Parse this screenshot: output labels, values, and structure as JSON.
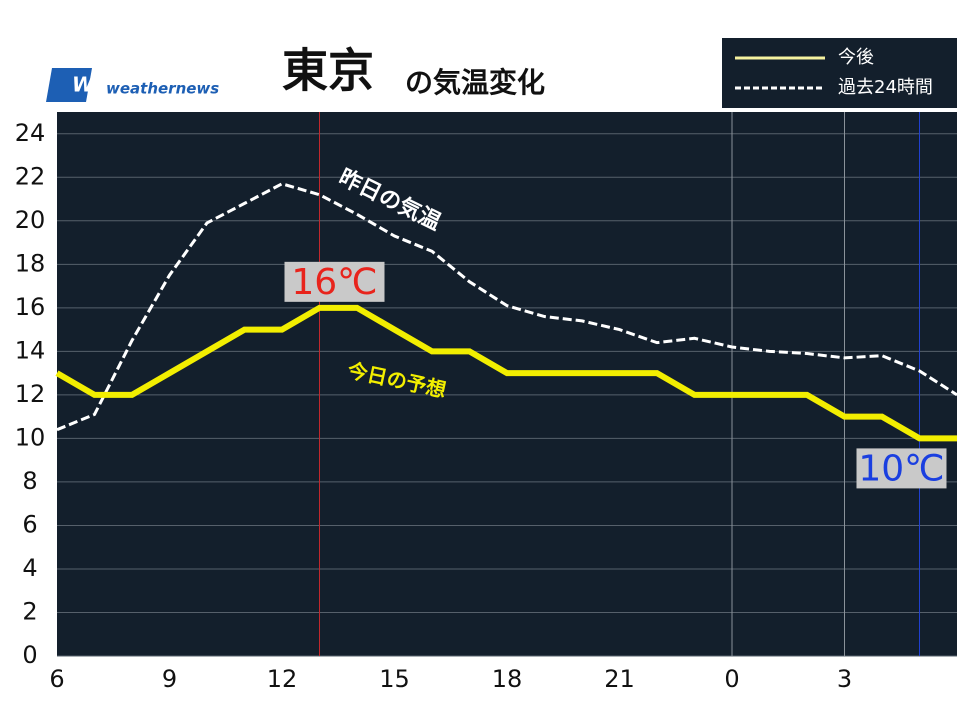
{
  "chart_data": {
    "type": "line",
    "title": "東京",
    "subtitle": "の気温変化",
    "source_mark": "WN",
    "source": "weathernews",
    "x": [
      6,
      7,
      8,
      9,
      10,
      11,
      12,
      13,
      14,
      15,
      16,
      17,
      18,
      19,
      20,
      21,
      22,
      23,
      24,
      25,
      26,
      27,
      28,
      29,
      30
    ],
    "xlim": [
      6,
      30
    ],
    "xticks": [
      6,
      9,
      12,
      15,
      18,
      21,
      {
        "value": 24,
        "label": "0"
      },
      {
        "value": 27,
        "label": "3"
      }
    ],
    "ylim": [
      0,
      25
    ],
    "yticks": [
      0,
      2,
      4,
      6,
      8,
      10,
      12,
      14,
      16,
      18,
      20,
      22,
      24
    ],
    "grid": true,
    "legend": "top-right",
    "series": [
      {
        "name": "今後",
        "annotation": "今日の予想",
        "color": "#f2ee00",
        "style": "solid",
        "values": [
          13,
          12,
          12,
          13,
          14,
          15,
          15,
          16,
          16,
          15,
          14,
          14,
          13,
          13,
          13,
          13,
          13,
          12,
          12,
          12,
          12,
          11,
          11,
          10,
          10
        ]
      },
      {
        "name": "過去24時間",
        "annotation": "昨日の気温",
        "color": "#ffffff",
        "style": "dashed",
        "values": [
          10.4,
          11.1,
          14.5,
          17.5,
          19.9,
          20.8,
          21.7,
          21.2,
          20.3,
          19.3,
          18.6,
          17.2,
          16.1,
          15.6,
          15.4,
          15.0,
          14.4,
          14.6,
          14.2,
          14.0,
          13.9,
          13.7,
          13.8,
          13.1,
          12.0
        ]
      }
    ],
    "max_label": "16℃",
    "min_label": "10℃"
  }
}
